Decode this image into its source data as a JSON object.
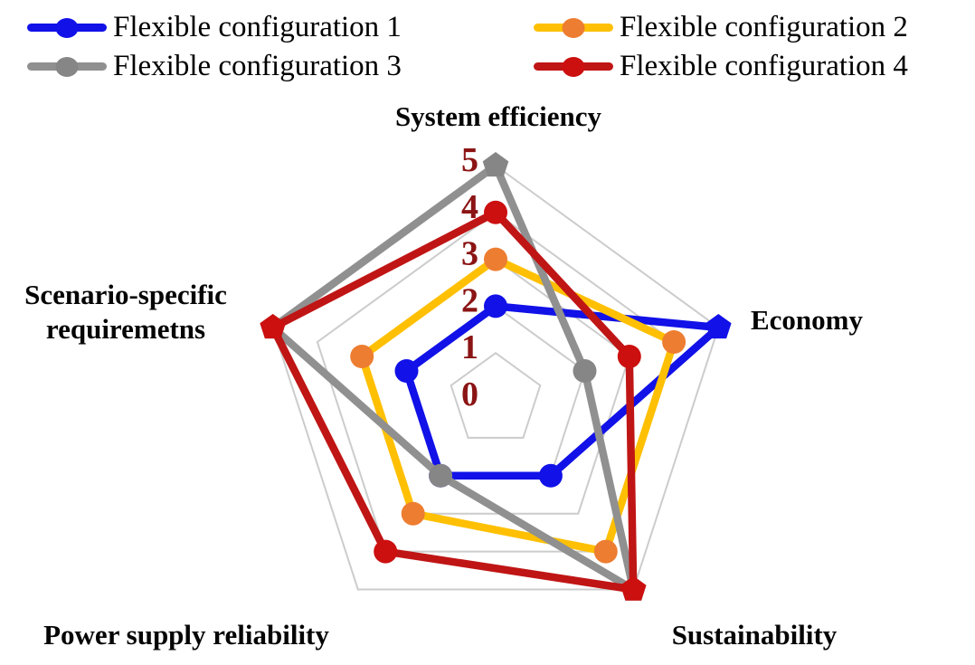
{
  "chart_data": {
    "type": "radar",
    "axes": [
      "System efficiency",
      "Economy",
      "Sustainability",
      "Power supply reliability",
      "Scenario-specific\nrequiremetns"
    ],
    "ticks": [
      0,
      1,
      2,
      3,
      4,
      5
    ],
    "rmin": 0,
    "rmax": 5,
    "grid_shape": "pentagon",
    "grid_color": "#cccccc",
    "tick_color": "#8b1414",
    "legend_position": "top",
    "series": [
      {
        "name": "Flexible configuration 1",
        "line_color": "#1111e8",
        "marker_color": "#1111e8",
        "values": [
          2,
          5,
          2,
          2,
          2
        ]
      },
      {
        "name": "Flexible configuration 2",
        "line_color": "#ffc003",
        "marker_color": "#ed7d31",
        "values": [
          3,
          4,
          4,
          3,
          3
        ]
      },
      {
        "name": "Flexible configuration 3",
        "line_color": "#909090",
        "marker_color": "#868686",
        "values": [
          5,
          2,
          5,
          2,
          5
        ]
      },
      {
        "name": "Flexible configuration 4",
        "line_color": "#c01515",
        "marker_color": "#cc0f0f",
        "values": [
          4,
          3,
          5,
          4,
          5
        ]
      }
    ]
  }
}
